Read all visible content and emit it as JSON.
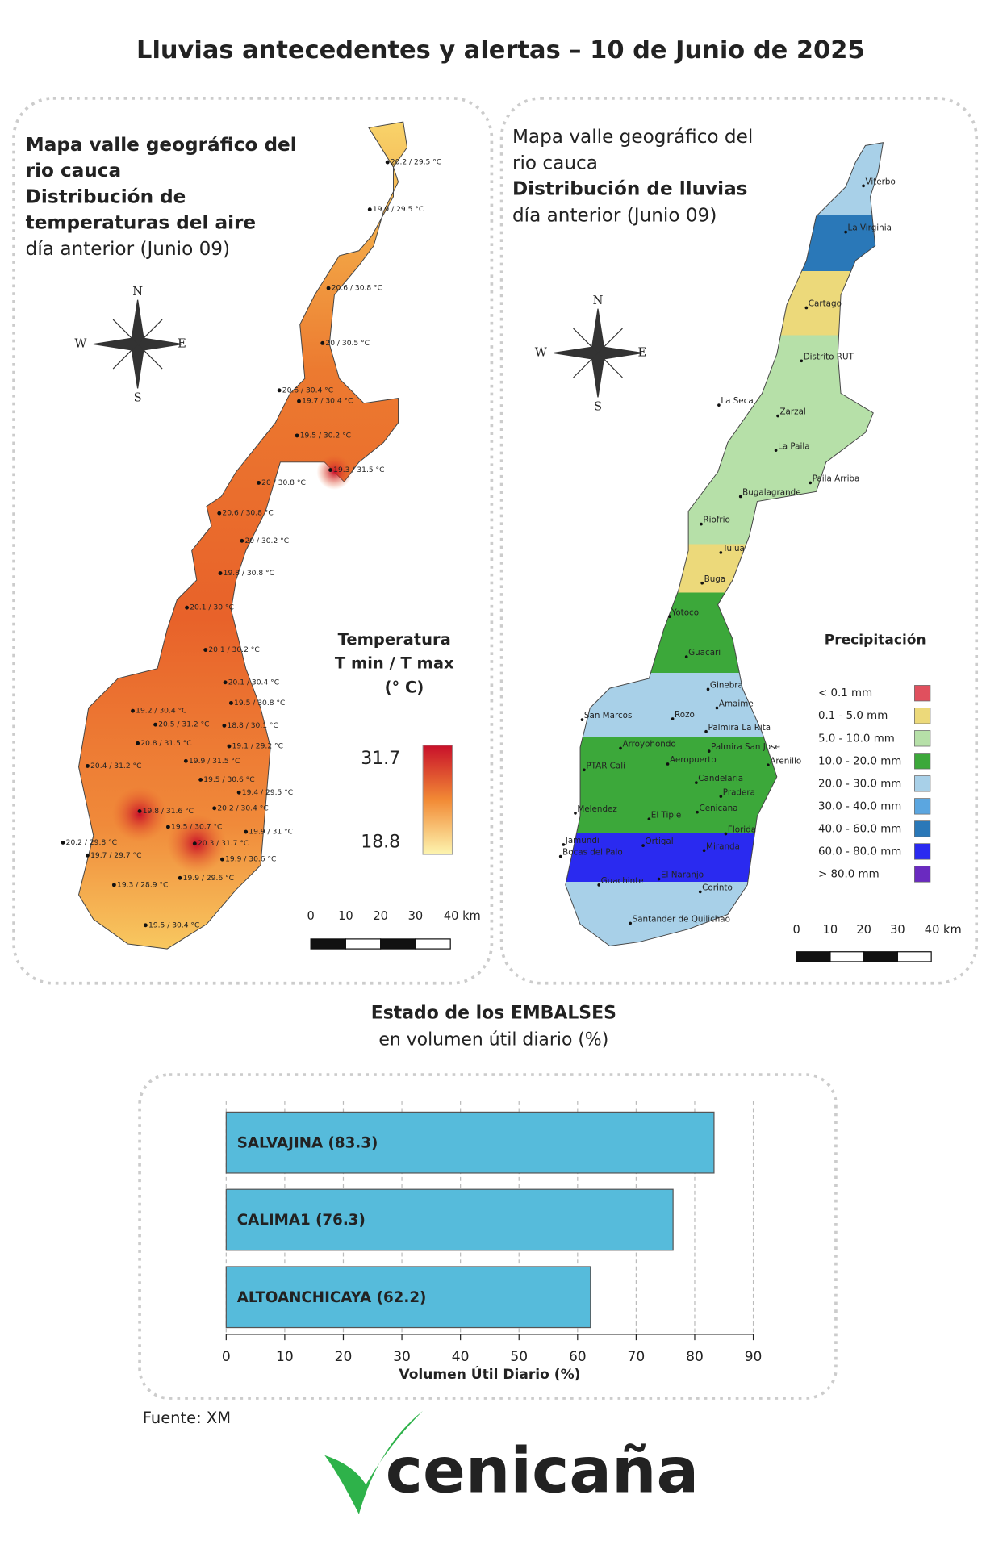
{
  "title": "Lluvias antecedentes y alertas – 10 de Junio de 2025",
  "compass": [
    "N",
    "W",
    "E",
    "S"
  ],
  "scale_labels": [
    "0",
    "10",
    "20",
    "30",
    "40 km"
  ],
  "temperature_map": {
    "heading": [
      "Mapa valle geográfico del",
      "rio cauca",
      "Distribución de",
      "temperaturas del aire"
    ],
    "subheading": "día anterior (Junio 09)",
    "legend_title": [
      "Temperatura",
      "T min / T max",
      "(° C)"
    ],
    "legend_max": 31.7,
    "legend_min": 18.8,
    "stations": [
      "20.2 / 29.5 °C",
      "19.9 / 29.5 °C",
      "20.6 / 30.8 °C",
      "20 / 30.5 °C",
      "20.6 / 30.4 °C",
      "19.7 / 30.4 °C",
      "19.5 / 30.2 °C",
      "19.3 / 31.5 °C",
      "20 / 30.8 °C",
      "20.6 / 30.8 °C",
      "20 / 30.2 °C",
      "19.8 / 30.8 °C",
      "20.1 / 30 °C",
      "20.1 / 30.2 °C",
      "20.1 / 30.4 °C",
      "19.5 / 30.8 °C",
      "19.2 / 30.4 °C",
      "20.5 / 31.2 °C",
      "18.8 / 30.1 °C",
      "20.8 / 31.5 °C",
      "19.1 / 29.2 °C",
      "19.9 / 31.5 °C",
      "20.4 / 31.2 °C",
      "19.5 / 30.6 °C",
      "19.4 / 29.5 °C",
      "19.8 / 31.6 °C",
      "20.2 / 30.4 °C",
      "19.5 / 30.7 °C",
      "19.9 / 31 °C",
      "20.2 / 29.8 °C",
      "20.3 / 31.7 °C",
      "19.7 / 29.7 °C",
      "19.9 / 30.6 °C",
      "19.3 / 28.9 °C",
      "19.9 / 29.6 °C",
      "19.5 / 30.4 °C"
    ]
  },
  "rain_map": {
    "heading": [
      "Mapa valle geográfico del",
      "rio cauca",
      "Distribución de lluvias"
    ],
    "subheading": "día anterior (Junio 09)",
    "legend_title": "Precipitación",
    "classes": [
      {
        "label": "< 0.1 mm",
        "color": "#e0505e"
      },
      {
        "label": "0.1 - 5.0 mm",
        "color": "#ecd97a"
      },
      {
        "label": "5.0 - 10.0 mm",
        "color": "#b6e0a8"
      },
      {
        "label": "10.0 - 20.0 mm",
        "color": "#3ca83a"
      },
      {
        "label": "20.0 - 30.0 mm",
        "color": "#a8d0e8"
      },
      {
        "label": "30.0 - 40.0 mm",
        "color": "#5ba6e0"
      },
      {
        "label": "40.0 - 60.0 mm",
        "color": "#2a78b8"
      },
      {
        "label": "60.0 - 80.0 mm",
        "color": "#2a2af0"
      },
      {
        "label": "> 80.0 mm",
        "color": "#6a2ac0"
      }
    ],
    "places": [
      "Viterbo",
      "La Virginia",
      "Cartago",
      "Distrito RUT",
      "La Seca",
      "Zarzal",
      "La Paila",
      "Paila Arriba",
      "Bugalagrande",
      "Riofrio",
      "Tulua",
      "Buga",
      "Yotoco",
      "Guacari",
      "Ginebra",
      "Amaime",
      "San Marcos",
      "Rozo",
      "Palmira La Rita",
      "Arroyohondo",
      "Palmira San Jose",
      "Aeropuerto",
      "Arenillo",
      "PTAR Cali",
      "Candelaria",
      "Pradera",
      "Cenicana",
      "Melendez",
      "El Tiple",
      "Florida",
      "Jamundi",
      "Bocas del Palo",
      "Ortigal",
      "Miranda",
      "El Naranjo",
      "Guachinte",
      "Corinto",
      "Santander de Quilichao"
    ]
  },
  "chart_data": {
    "type": "bar",
    "orientation": "horizontal",
    "title": "Estado de los EMBALSES",
    "subtitle": "en volumen útil diario (%)",
    "values": [
      83.3,
      76.3,
      62.2
    ],
    "value_labels": [
      "SALVAJINA (83.3)",
      "CALIMA1 (76.3)",
      "ALTOANCHICAYA (62.2)"
    ],
    "color": "#56bbdb",
    "xlim": [
      0,
      90
    ],
    "xticks": [
      0,
      10,
      20,
      30,
      40,
      50,
      60,
      70,
      80,
      90
    ],
    "xlabel": "Volumen Útil Diario (%)",
    "grid": true
  },
  "source": "Fuente: XM",
  "logo": "cenicaña"
}
